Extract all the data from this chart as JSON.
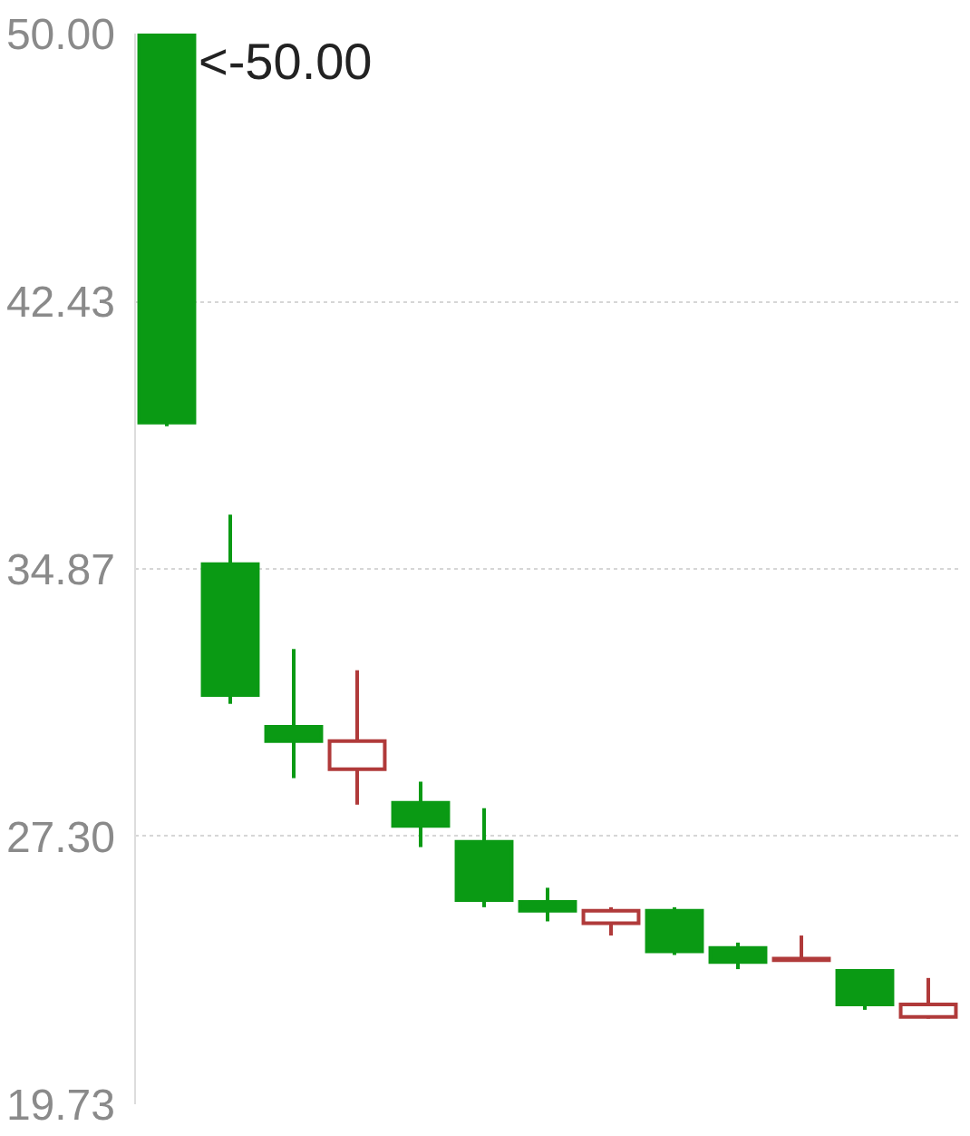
{
  "chart_data": {
    "type": "candlestick",
    "categories": [
      null,
      null,
      null,
      null,
      null,
      null,
      null,
      null,
      null,
      null,
      null,
      null,
      null
    ],
    "ohlc": [
      [
        50.0,
        50.0,
        38.9,
        39.0
      ],
      [
        35.0,
        36.4,
        31.05,
        31.3
      ],
      [
        30.4,
        32.6,
        28.95,
        30.0
      ],
      [
        29.2,
        32.0,
        28.2,
        30.0
      ],
      [
        28.25,
        28.85,
        27.0,
        27.6
      ],
      [
        27.15,
        28.1,
        25.3,
        25.5
      ],
      [
        25.45,
        25.85,
        24.9,
        25.2
      ],
      [
        24.85,
        25.3,
        24.5,
        25.2
      ],
      [
        25.2,
        25.3,
        23.95,
        24.05
      ],
      [
        24.15,
        24.3,
        23.55,
        23.75
      ],
      [
        23.8,
        24.5,
        23.8,
        23.85
      ],
      [
        23.5,
        23.5,
        22.4,
        22.55
      ],
      [
        22.2,
        23.3,
        22.15,
        22.55
      ]
    ],
    "colors": [
      "#0a9a14",
      "#0a9a14",
      "#0a9a14",
      "#b03a3a",
      "#0a9a14",
      "#0a9a14",
      "#0a9a14",
      "#b03a3a",
      "#0a9a14",
      "#0a9a14",
      "#b03a3a",
      "#0a9a14",
      "#b03a3a"
    ],
    "ylim": [
      19.73,
      50.0
    ],
    "yticks": [
      19.73,
      {
        "value": 27.3,
        "label": "27.30"
      },
      34.87,
      42.43,
      {
        "value": 50,
        "label": "50.00"
      }
    ],
    "grid": "y",
    "tick_labels": "y",
    "annotations": [
      "<-50.00"
    ]
  }
}
